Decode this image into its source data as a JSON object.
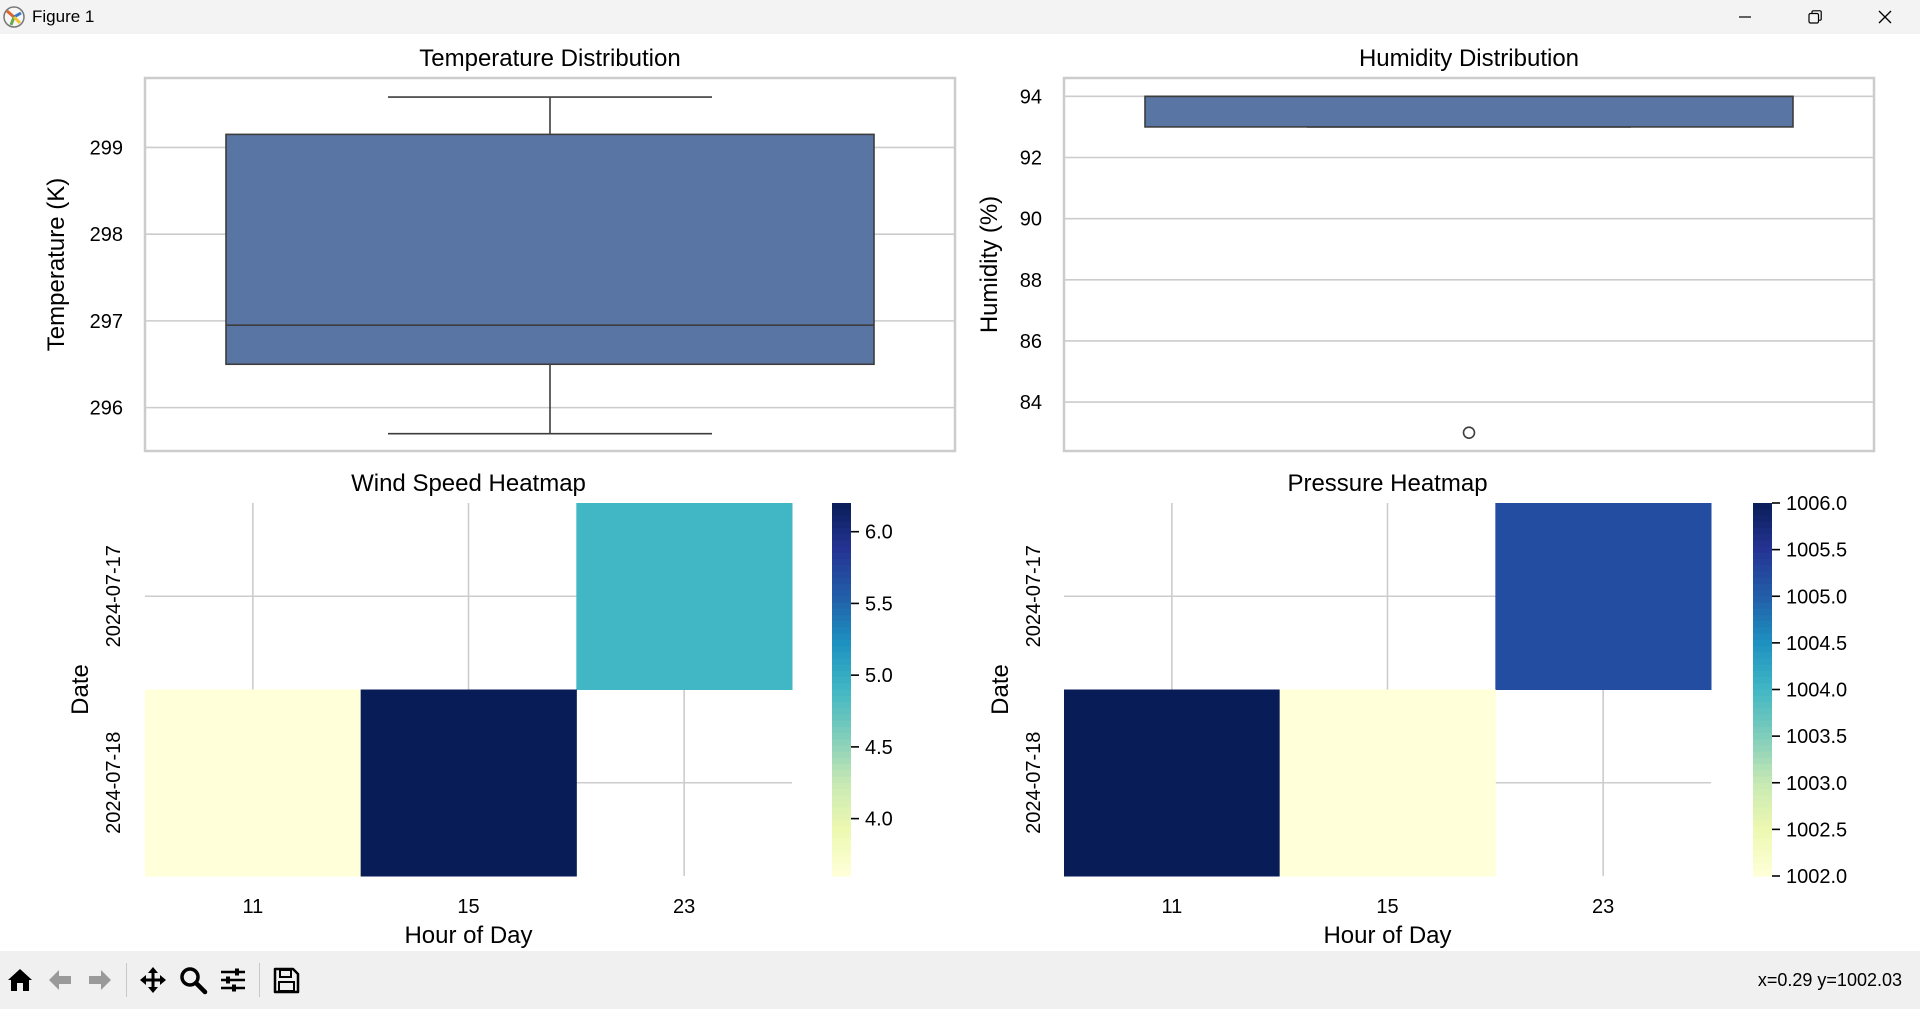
{
  "window": {
    "title": "Figure 1"
  },
  "colors": {
    "box_fill": "#5975a4",
    "box_edge": "#3d3d3d",
    "grid": "#cccccc",
    "frame": "#cccccc",
    "heat_low": "#ffffd9",
    "heat_high": "#081d58"
  },
  "toolbar": {
    "icons": [
      "home-icon",
      "back-icon",
      "forward-icon",
      "pan-icon",
      "zoom-icon",
      "configure-subplots-icon",
      "save-icon"
    ],
    "coords": "x=0.29 y=1002.03"
  },
  "chart_data": [
    {
      "type": "box",
      "title": "Temperature Distribution",
      "ylabel": "Temperature (K)",
      "ylim": [
        295.5,
        299.8
      ],
      "yticks": [
        296,
        297,
        298,
        299
      ],
      "stats": {
        "whisker_low": 295.7,
        "q1": 296.5,
        "median": 296.95,
        "q3": 299.15,
        "whisker_high": 299.58
      },
      "outliers": [],
      "grid": true
    },
    {
      "type": "box",
      "title": "Humidity Distribution",
      "ylabel": "Humidity (%)",
      "ylim": [
        82.4,
        94.6
      ],
      "yticks": [
        84,
        86,
        88,
        90,
        92,
        94
      ],
      "stats": {
        "whisker_low": 93,
        "q1": 93,
        "median": 94,
        "q3": 94,
        "whisker_high": 94
      },
      "outliers": [
        83
      ],
      "grid": true
    },
    {
      "type": "heatmap",
      "title": "Wind Speed Heatmap",
      "xlabel": "Hour of Day",
      "ylabel": "Date",
      "x_categories": [
        "11",
        "15",
        "23"
      ],
      "y_categories": [
        "2024-07-17",
        "2024-07-18"
      ],
      "values": [
        [
          null,
          null,
          4.9
        ],
        [
          3.6,
          6.2,
          null
        ]
      ],
      "colorbar": {
        "min": 3.6,
        "max": 6.2,
        "ticks": [
          "4.0",
          "4.5",
          "5.0",
          "5.5",
          "6.0"
        ]
      },
      "grid": true
    },
    {
      "type": "heatmap",
      "title": "Pressure Heatmap",
      "xlabel": "Hour of Day",
      "ylabel": "Date",
      "x_categories": [
        "11",
        "15",
        "23"
      ],
      "y_categories": [
        "2024-07-17",
        "2024-07-18"
      ],
      "values": [
        [
          null,
          null,
          1005.2
        ],
        [
          1006.0,
          1002.0,
          null
        ]
      ],
      "colorbar": {
        "min": 1002.0,
        "max": 1006.0,
        "ticks": [
          "1002.0",
          "1002.5",
          "1003.0",
          "1003.5",
          "1004.0",
          "1004.5",
          "1005.0",
          "1005.5",
          "1006.0"
        ]
      },
      "grid": true
    }
  ]
}
